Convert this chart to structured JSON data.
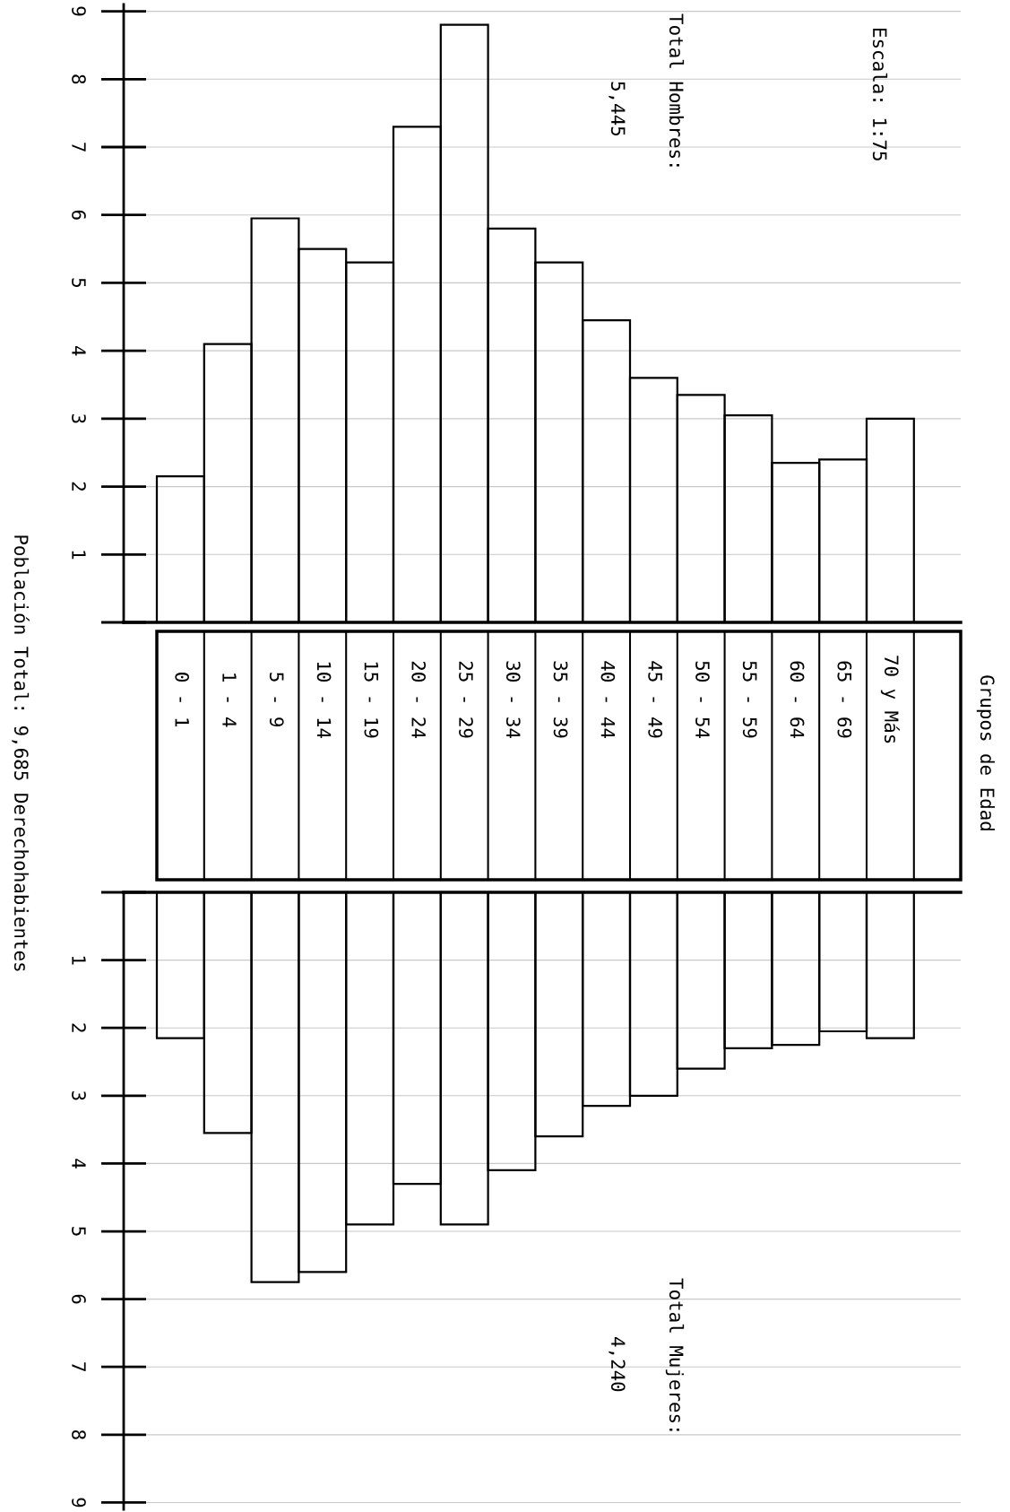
{
  "chart_data": [
    {
      "type": "bar",
      "categories": [
        "0 - 1",
        "1 - 4",
        "5 - 9",
        "10 - 14",
        "15 - 19",
        "20 - 24",
        "25 - 29",
        "30 - 34",
        "35 - 39",
        "40 - 44",
        "45 - 49",
        "50 - 54",
        "55 - 59",
        "60 - 64",
        "65 - 69",
        "70 y Más"
      ],
      "series": [
        {
          "color": "#000000",
          "values": [
            2.15,
            4.1,
            5.95,
            5.5,
            5.3,
            7.3,
            8.8,
            5.8,
            5.3,
            4.45,
            3.6,
            3.35,
            3.05,
            2.35,
            2.4,
            3.0
          ]
        }
      ],
      "ylim": [
        0,
        9.1
      ],
      "yticks": [
        {
          "value": 0,
          "label": null
        },
        1,
        2,
        3,
        4,
        5,
        6,
        7,
        8,
        9
      ],
      "grid": "y",
      "annotations": [
        "Escala: 1:75",
        "Total Hombres:",
        "5,445",
        "Población Total: 9,685 Derechohabientes",
        "Grupos de Edad"
      ]
    },
    {
      "type": "bar",
      "categories": [
        null,
        null,
        null,
        null,
        null,
        null,
        null,
        null,
        null,
        null,
        null,
        null,
        null,
        null,
        null,
        null
      ],
      "series": [
        {
          "color": "#000000",
          "values": [
            2.15,
            3.55,
            5.75,
            5.6,
            4.9,
            4.3,
            4.9,
            4.1,
            3.6,
            3.15,
            3.0,
            2.6,
            2.3,
            2.25,
            2.05,
            2.15
          ]
        }
      ],
      "ylim": [
        9.1,
        0
      ],
      "yticks": [
        {
          "value": 0,
          "label": null
        },
        1,
        2,
        3,
        4,
        5,
        6,
        7,
        8,
        9
      ],
      "grid": "y",
      "tick_labels": "y",
      "annotations": [
        "Total Mujeres:",
        "4,240"
      ]
    }
  ]
}
